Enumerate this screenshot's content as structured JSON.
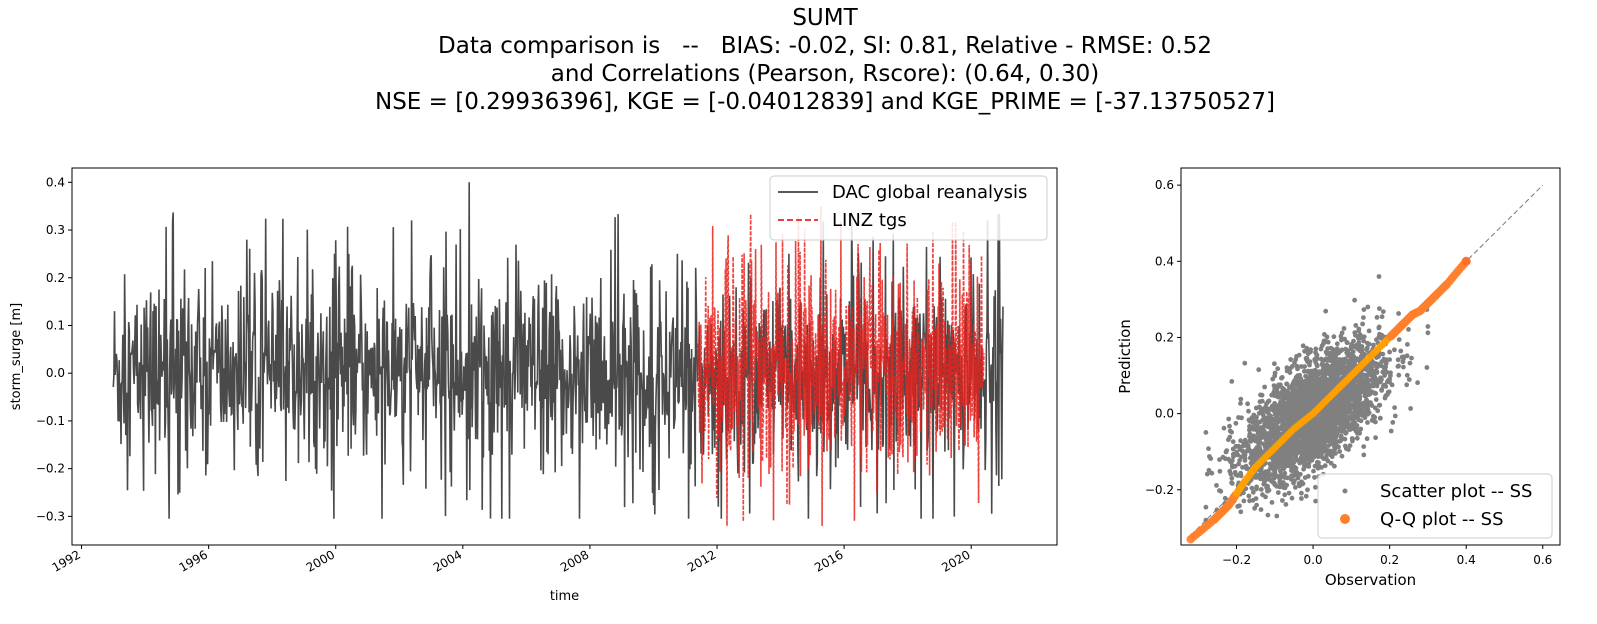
{
  "figure_title": [
    "SUMT",
    "Data comparison is   --   BIAS: -0.02, SI: 0.81, Relative - RMSE: 0.52",
    "and Correlations (Pearson, Rscore): (0.64, 0.30)",
    "NSE = [0.29936396], KGE = [-0.04012839] and KGE_PRIME = [-37.13750527]"
  ],
  "chart_data": [
    {
      "type": "line",
      "xlabel": "time",
      "ylabel": "storm_surge [m]",
      "xlim": [
        1991.7,
        2022.7
      ],
      "ylim": [
        -0.36,
        0.43
      ],
      "x_ticks": [
        1992,
        1996,
        2000,
        2004,
        2008,
        2012,
        2016,
        2020
      ],
      "y_ticks": [
        -0.3,
        -0.2,
        -0.1,
        0.0,
        0.1,
        0.2,
        0.3,
        0.4
      ],
      "legend_position": "top-right",
      "series": [
        {
          "name": "DAC global reanalysis",
          "color": "#404040",
          "style": "solid",
          "x_range": [
            1993.0,
            2021.0
          ],
          "typical_band": [
            -0.17,
            0.17
          ],
          "max": 0.4,
          "min": -0.305
        },
        {
          "name": "LINZ tgs",
          "color": "#e8231f",
          "style": "dashed",
          "x_range": [
            2011.4,
            2020.4
          ],
          "typical_band": [
            -0.16,
            0.17
          ],
          "max": 0.35,
          "min": -0.32
        }
      ]
    },
    {
      "type": "scatter",
      "xlabel": "Observation",
      "ylabel": "Prediction",
      "xlim": [
        -0.345,
        0.645
      ],
      "ylim": [
        -0.345,
        0.645
      ],
      "x_ticks": [
        -0.2,
        0.0,
        0.2,
        0.4,
        0.6
      ],
      "y_ticks": [
        -0.2,
        0.0,
        0.2,
        0.4,
        0.6
      ],
      "legend_position": "bottom-right",
      "reference_line": {
        "from": [
          -0.32,
          -0.32
        ],
        "to": [
          0.6,
          0.6
        ],
        "style": "dashed",
        "color": "#777777"
      },
      "series": [
        {
          "name": "Scatter plot -- SS",
          "color": "#808080",
          "pearson_r": 0.64,
          "obs_std": 0.09,
          "pred_std": 0.09,
          "cloud_x_range": [
            -0.28,
            0.3
          ],
          "cloud_y_range": [
            -0.28,
            0.36
          ]
        },
        {
          "name": "Q-Q plot -- SS",
          "color": "#ffa000",
          "x": [
            -0.32,
            -0.26,
            -0.24,
            -0.22,
            -0.2,
            -0.18,
            -0.15,
            -0.1,
            -0.05,
            0.0,
            0.05,
            0.1,
            0.15,
            0.2,
            0.22,
            0.24,
            0.26,
            0.28,
            0.3,
            0.32,
            0.35,
            0.4
          ],
          "y": [
            -0.33,
            -0.28,
            -0.26,
            -0.24,
            -0.21,
            -0.18,
            -0.14,
            -0.09,
            -0.04,
            0.0,
            0.05,
            0.1,
            0.15,
            0.2,
            0.22,
            0.24,
            0.26,
            0.27,
            0.29,
            0.31,
            0.34,
            0.4
          ]
        }
      ]
    }
  ]
}
